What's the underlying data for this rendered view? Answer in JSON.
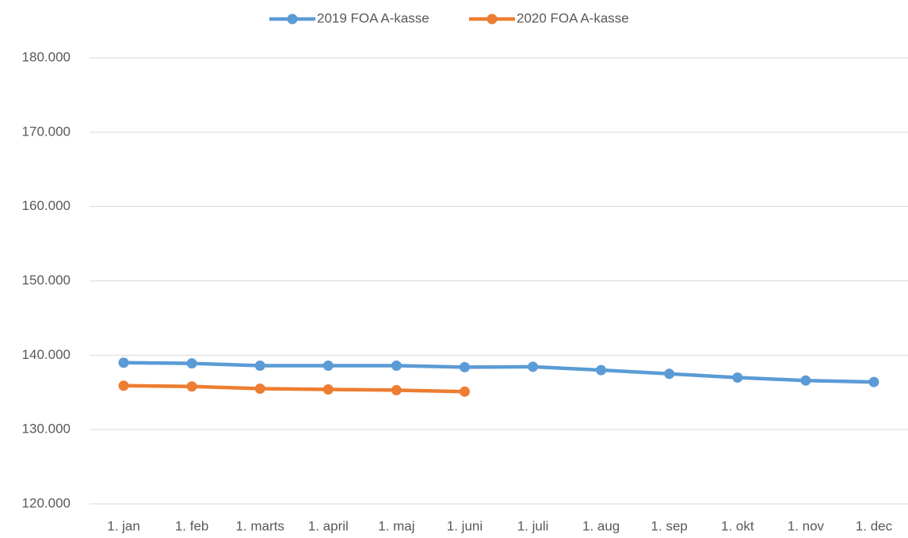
{
  "chart_data": {
    "type": "line",
    "categories": [
      "1. jan",
      "1. feb",
      "1. marts",
      "1. april",
      "1. maj",
      "1. juni",
      "1. juli",
      "1. aug",
      "1. sep",
      "1. okt",
      "1. nov",
      "1. dec"
    ],
    "series": [
      {
        "name": "2019 FOA A-kasse",
        "color": "#5b9bd5",
        "values": [
          139000,
          138900,
          138600,
          138600,
          138600,
          138400,
          138450,
          138000,
          137500,
          137000,
          136600,
          136400
        ]
      },
      {
        "name": "2020 FOA A-kasse",
        "color": "#ed7d31",
        "values": [
          135900,
          135800,
          135500,
          135400,
          135300,
          135100,
          null,
          null,
          null,
          null,
          null,
          null
        ]
      }
    ],
    "ylim": [
      120000,
      180000
    ],
    "yticks": [
      {
        "value": 120000,
        "label": "120.000"
      },
      {
        "value": 130000,
        "label": "130.000"
      },
      {
        "value": 140000,
        "label": "140.000"
      },
      {
        "value": 150000,
        "label": "150.000"
      },
      {
        "value": 160000,
        "label": "160.000"
      },
      {
        "value": 170000,
        "label": "170.000"
      },
      {
        "value": 180000,
        "label": "180.000"
      }
    ],
    "grid": true,
    "legend": "top"
  }
}
